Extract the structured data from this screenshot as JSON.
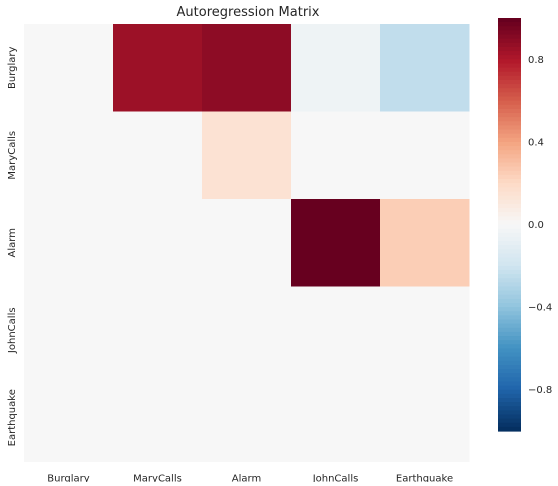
{
  "chart_data": {
    "type": "heatmap",
    "title": "Autoregression Matrix",
    "xlabel": "",
    "ylabel": "",
    "x_categories": [
      "Burglary",
      "MaryCalls",
      "Alarm",
      "JohnCalls",
      "Earthquake"
    ],
    "y_categories": [
      "Burglary",
      "MaryCalls",
      "Alarm",
      "JohnCalls",
      "Earthquake"
    ],
    "values": [
      [
        0.0,
        0.86,
        0.9,
        -0.05,
        -0.25
      ],
      [
        0.0,
        0.0,
        0.15,
        0.0,
        0.0
      ],
      [
        0.0,
        0.0,
        0.0,
        1.0,
        0.25
      ],
      [
        0.0,
        0.0,
        0.0,
        0.0,
        0.0
      ],
      [
        0.0,
        0.0,
        0.0,
        0.0,
        0.0
      ]
    ],
    "colorscale": "RdBu_r",
    "vmin": -1,
    "vmax": 1,
    "colorbar": {
      "ticks": [
        -0.8,
        -0.4,
        0.0,
        0.4,
        0.8
      ],
      "tick_labels": [
        "−0.8",
        "−0.4",
        "0.0",
        "0.4",
        "0.8"
      ]
    },
    "grid": false
  }
}
